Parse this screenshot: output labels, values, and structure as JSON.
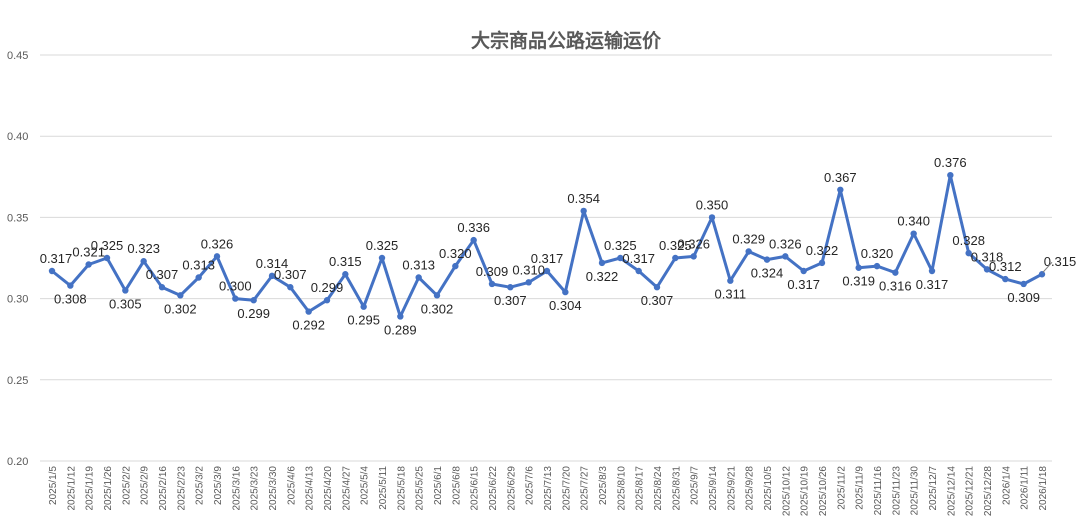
{
  "chart_data": {
    "type": "line",
    "title": "大宗商品公路运输运价",
    "xlabel": "",
    "ylabel": "",
    "ylim": [
      0.2,
      0.45
    ],
    "yticks": [
      "0.20",
      "0.25",
      "0.30",
      "0.35",
      "0.40",
      "0.45"
    ],
    "grid": true,
    "legend": "none",
    "color": "#4472C4",
    "categories": [
      "2025/1/5",
      "2025/1/12",
      "2025/1/19",
      "2025/1/26",
      "2025/2/2",
      "2025/2/9",
      "2025/2/16",
      "2025/2/23",
      "2025/3/2",
      "2025/3/9",
      "2025/3/16",
      "2025/3/23",
      "2025/3/30",
      "2025/4/6",
      "2025/4/13",
      "2025/4/20",
      "2025/4/27",
      "2025/5/4",
      "2025/5/11",
      "2025/5/18",
      "2025/5/25",
      "2025/6/1",
      "2025/6/8",
      "2025/6/15",
      "2025/6/22",
      "2025/6/29",
      "2025/7/6",
      "2025/7/13",
      "2025/7/20",
      "2025/7/27",
      "2025/8/3",
      "2025/8/10",
      "2025/8/17",
      "2025/8/24",
      "2025/8/31",
      "2025/9/7",
      "2025/9/14",
      "2025/9/21",
      "2025/9/28",
      "2025/10/5",
      "2025/10/12",
      "2025/10/19",
      "2025/10/26",
      "2025/11/2",
      "2025/11/9",
      "2025/11/16",
      "2025/11/23",
      "2025/11/30",
      "2025/12/7",
      "2025/12/14",
      "2025/12/21",
      "2025/12/28",
      "2026/1/4",
      "2026/1/11",
      "2026/1/18"
    ],
    "series": [
      {
        "values": [
          0.317,
          0.308,
          0.321,
          0.325,
          0.305,
          0.323,
          0.307,
          0.302,
          0.313,
          0.326,
          0.3,
          0.299,
          0.314,
          0.307,
          0.292,
          0.299,
          0.315,
          0.295,
          0.325,
          0.289,
          0.313,
          0.302,
          0.32,
          0.336,
          0.309,
          0.307,
          0.31,
          0.317,
          0.304,
          0.354,
          0.322,
          0.325,
          0.317,
          0.307,
          0.325,
          0.326,
          0.35,
          0.311,
          0.329,
          0.324,
          0.326,
          0.317,
          0.322,
          0.367,
          0.319,
          0.32,
          0.316,
          0.34,
          0.317,
          0.376,
          0.328,
          0.318,
          0.312,
          0.309,
          0.315
        ],
        "labels": [
          "0.317",
          "0.308",
          "0.321",
          "0.325",
          "0.305",
          "0.323",
          "0.307",
          "0.302",
          "0.313",
          "0.326",
          "0.300",
          "0.299",
          "0.314",
          "0.307",
          "0.292",
          "0.299",
          "0.315",
          "0.295",
          "0.325",
          "0.289",
          "0.313",
          "0.302",
          "0.320",
          "0.336",
          "0.309",
          "0.307",
          "0.310",
          "0.317",
          "0.304",
          "0.354",
          "0.322",
          "0.325",
          "0.317",
          "0.307",
          "0.325",
          "0.326",
          "0.350",
          "0.311",
          "0.329",
          "0.324",
          "0.326",
          "0.317",
          "0.322",
          "0.367",
          "0.319",
          "0.320",
          "0.316",
          "0.340",
          "0.317",
          "0.376",
          "0.328",
          "0.318",
          "0.312",
          "0.309",
          "0.315"
        ]
      }
    ]
  }
}
